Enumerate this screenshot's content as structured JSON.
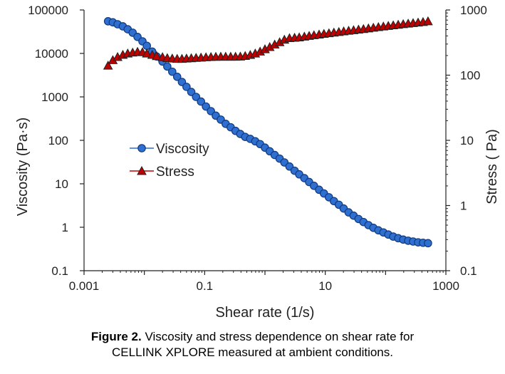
{
  "chart_data": {
    "type": "scatter",
    "xlabel": "Shear rate (1/s)",
    "ylabel": "Viscosity (Pa·s)",
    "y2label": "Stress ( Pa)",
    "xscale": "log",
    "yscale": "log",
    "y2scale": "log",
    "xlim": [
      0.001,
      1000
    ],
    "ylim": [
      0.1,
      100000
    ],
    "y2lim": [
      0.1,
      1000
    ],
    "xticks": [
      "0.001",
      "0.1",
      "10",
      "1000"
    ],
    "yticks": [
      "0.1",
      "1",
      "10",
      "100",
      "1000",
      "10000",
      "100000"
    ],
    "y2ticks": [
      "0.1",
      "1",
      "10",
      "100",
      "1000"
    ],
    "legend_position": "center-left",
    "series": [
      {
        "name": "Viscosity",
        "axis": "left",
        "marker": "circle",
        "color": "#2e6fd0",
        "points": [
          [
            0.0025,
            55000
          ],
          [
            0.003,
            52000
          ],
          [
            0.0036,
            47000
          ],
          [
            0.0044,
            42000
          ],
          [
            0.0053,
            36000
          ],
          [
            0.0064,
            30000
          ],
          [
            0.0077,
            24000
          ],
          [
            0.0093,
            19000
          ],
          [
            0.011,
            15000
          ],
          [
            0.0135,
            11000
          ],
          [
            0.016,
            8500
          ],
          [
            0.02,
            6500
          ],
          [
            0.024,
            5000
          ],
          [
            0.029,
            3800
          ],
          [
            0.035,
            2900
          ],
          [
            0.042,
            2200
          ],
          [
            0.05,
            1700
          ],
          [
            0.06,
            1300
          ],
          [
            0.072,
            1000
          ],
          [
            0.087,
            780
          ],
          [
            0.105,
            600
          ],
          [
            0.127,
            470
          ],
          [
            0.153,
            370
          ],
          [
            0.185,
            300
          ],
          [
            0.223,
            240
          ],
          [
            0.27,
            200
          ],
          [
            0.325,
            165
          ],
          [
            0.39,
            140
          ],
          [
            0.47,
            120
          ],
          [
            0.57,
            108
          ],
          [
            0.69,
            95
          ],
          [
            0.83,
            82
          ],
          [
            1.0,
            68
          ],
          [
            1.2,
            56
          ],
          [
            1.45,
            46
          ],
          [
            1.75,
            38
          ],
          [
            2.1,
            31
          ],
          [
            2.55,
            25
          ],
          [
            3.1,
            20
          ],
          [
            3.7,
            16.5
          ],
          [
            4.5,
            13.5
          ],
          [
            5.4,
            11
          ],
          [
            6.5,
            9
          ],
          [
            7.9,
            7.3
          ],
          [
            9.5,
            6
          ],
          [
            11.5,
            4.9
          ],
          [
            13.9,
            4.0
          ],
          [
            16.8,
            3.3
          ],
          [
            20.2,
            2.7
          ],
          [
            24.4,
            2.2
          ],
          [
            29.5,
            1.85
          ],
          [
            35.6,
            1.55
          ],
          [
            43,
            1.32
          ],
          [
            52,
            1.12
          ],
          [
            62.8,
            0.97
          ],
          [
            76,
            0.85
          ],
          [
            92,
            0.76
          ],
          [
            111,
            0.68
          ],
          [
            134,
            0.61
          ],
          [
            162,
            0.56
          ],
          [
            196,
            0.52
          ],
          [
            237,
            0.49
          ],
          [
            286,
            0.47
          ],
          [
            346,
            0.45
          ],
          [
            418,
            0.44
          ],
          [
            505,
            0.43
          ]
        ]
      },
      {
        "name": "Stress",
        "axis": "right",
        "marker": "triangle",
        "color": "#c00000",
        "points": [
          [
            0.0025,
            140
          ],
          [
            0.003,
            170
          ],
          [
            0.0036,
            190
          ],
          [
            0.0044,
            205
          ],
          [
            0.0053,
            215
          ],
          [
            0.0064,
            222
          ],
          [
            0.0077,
            228
          ],
          [
            0.0093,
            225
          ],
          [
            0.011,
            215
          ],
          [
            0.0135,
            205
          ],
          [
            0.016,
            196
          ],
          [
            0.02,
            189
          ],
          [
            0.024,
            183
          ],
          [
            0.029,
            180
          ],
          [
            0.035,
            178
          ],
          [
            0.042,
            178
          ],
          [
            0.05,
            180
          ],
          [
            0.06,
            182
          ],
          [
            0.072,
            184
          ],
          [
            0.087,
            186
          ],
          [
            0.105,
            188
          ],
          [
            0.127,
            190
          ],
          [
            0.153,
            191
          ],
          [
            0.185,
            192
          ],
          [
            0.223,
            192
          ],
          [
            0.27,
            192
          ],
          [
            0.325,
            192
          ],
          [
            0.39,
            193
          ],
          [
            0.47,
            197
          ],
          [
            0.57,
            204
          ],
          [
            0.69,
            215
          ],
          [
            0.83,
            230
          ],
          [
            1.0,
            250
          ],
          [
            1.2,
            270
          ],
          [
            1.45,
            295
          ],
          [
            1.75,
            320
          ],
          [
            2.1,
            350
          ],
          [
            2.55,
            370
          ],
          [
            3.1,
            375
          ],
          [
            3.7,
            380
          ],
          [
            4.5,
            390
          ],
          [
            5.4,
            400
          ],
          [
            6.5,
            410
          ],
          [
            7.9,
            420
          ],
          [
            9.5,
            430
          ],
          [
            11.5,
            440
          ],
          [
            13.9,
            450
          ],
          [
            16.8,
            460
          ],
          [
            20.2,
            470
          ],
          [
            24.4,
            480
          ],
          [
            29.5,
            490
          ],
          [
            35.6,
            500
          ],
          [
            43,
            510
          ],
          [
            52,
            522
          ],
          [
            62.8,
            534
          ],
          [
            76,
            546
          ],
          [
            92,
            558
          ],
          [
            111,
            570
          ],
          [
            134,
            582
          ],
          [
            162,
            594
          ],
          [
            196,
            606
          ],
          [
            237,
            618
          ],
          [
            286,
            630
          ],
          [
            346,
            642
          ],
          [
            418,
            654
          ],
          [
            505,
            670
          ]
        ]
      }
    ]
  },
  "caption": {
    "label": "Figure 2.",
    "text": " Viscosity and stress dependence on shear rate for",
    "line2": "CELLINK XPLORE measured at ambient conditions."
  }
}
